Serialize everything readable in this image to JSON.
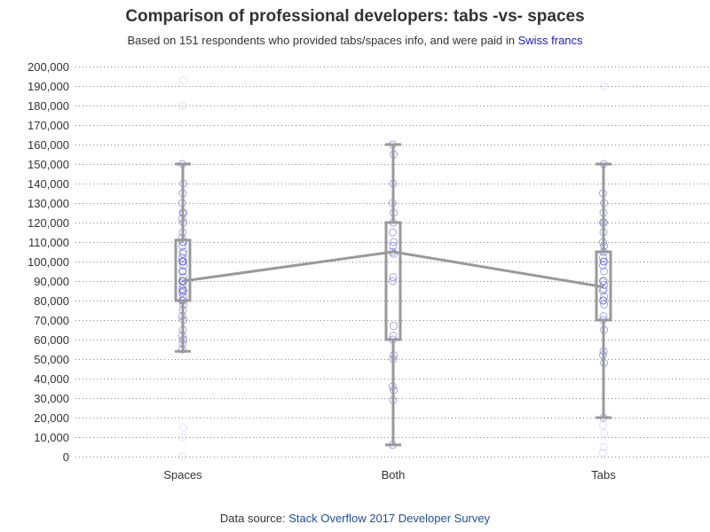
{
  "title": "Comparison of professional developers: tabs -vs- spaces",
  "subtitle": {
    "prefix": "Based on 151 respondents who provided tabs/spaces info, and were paid in ",
    "currency": "Swiss francs"
  },
  "footer": {
    "prefix": "Data source: ",
    "source": "Stack Overflow 2017 Developer Survey"
  },
  "colors": {
    "box": "#999999",
    "point": "#4a4acc",
    "grid": "#888888",
    "text": "#333333"
  },
  "chart_data": {
    "type": "box",
    "title": "Comparison of professional developers: tabs -vs- spaces",
    "xlabel": "",
    "ylabel": "",
    "ylim": [
      0,
      200000
    ],
    "y_ticks": [
      "0",
      "10,000",
      "20,000",
      "30,000",
      "40,000",
      "50,000",
      "60,000",
      "70,000",
      "80,000",
      "90,000",
      "100,000",
      "110,000",
      "120,000",
      "130,000",
      "140,000",
      "150,000",
      "160,000",
      "170,000",
      "180,000",
      "190,000",
      "200,000"
    ],
    "grid": "horizontal dotted",
    "categories": [
      "Spaces",
      "Both",
      "Tabs"
    ],
    "boxes": [
      {
        "category": "Spaces",
        "whisker_low": 54000,
        "q1": 80000,
        "median": 90000,
        "q3": 111000,
        "whisker_high": 150000
      },
      {
        "category": "Both",
        "whisker_low": 6000,
        "q1": 60000,
        "median": 105000,
        "q3": 120000,
        "whisker_high": 160000
      },
      {
        "category": "Tabs",
        "whisker_low": 20000,
        "q1": 70000,
        "median": 87000,
        "q3": 105000,
        "whisker_high": 150000
      }
    ],
    "median_line": [
      90000,
      105000,
      87000
    ],
    "points": [
      {
        "category": "Spaces",
        "values": [
          0,
          10000,
          15000,
          55000,
          58000,
          60000,
          62000,
          65000,
          70000,
          72000,
          75000,
          78000,
          80000,
          80000,
          82000,
          84000,
          85000,
          85000,
          86000,
          88000,
          90000,
          90000,
          90000,
          92000,
          95000,
          95000,
          98000,
          100000,
          100000,
          100000,
          102000,
          104000,
          105000,
          108000,
          110000,
          110000,
          112000,
          115000,
          120000,
          122000,
          125000,
          125000,
          130000,
          135000,
          140000,
          150000,
          180000,
          193000
        ]
      },
      {
        "category": "Both",
        "values": [
          6000,
          29000,
          34000,
          36000,
          50000,
          52000,
          60000,
          62000,
          67000,
          90000,
          92000,
          104000,
          105000,
          108000,
          110000,
          115000,
          120000,
          125000,
          130000,
          140000,
          155000,
          160000
        ]
      },
      {
        "category": "Tabs",
        "values": [
          2000,
          5000,
          12000,
          16000,
          20000,
          48000,
          52000,
          54000,
          65000,
          70000,
          72000,
          78000,
          80000,
          80000,
          82000,
          85000,
          86000,
          88000,
          90000,
          90000,
          95000,
          98000,
          100000,
          100000,
          102000,
          105000,
          108000,
          110000,
          115000,
          120000,
          120000,
          125000,
          130000,
          135000,
          150000,
          190000
        ]
      }
    ]
  }
}
